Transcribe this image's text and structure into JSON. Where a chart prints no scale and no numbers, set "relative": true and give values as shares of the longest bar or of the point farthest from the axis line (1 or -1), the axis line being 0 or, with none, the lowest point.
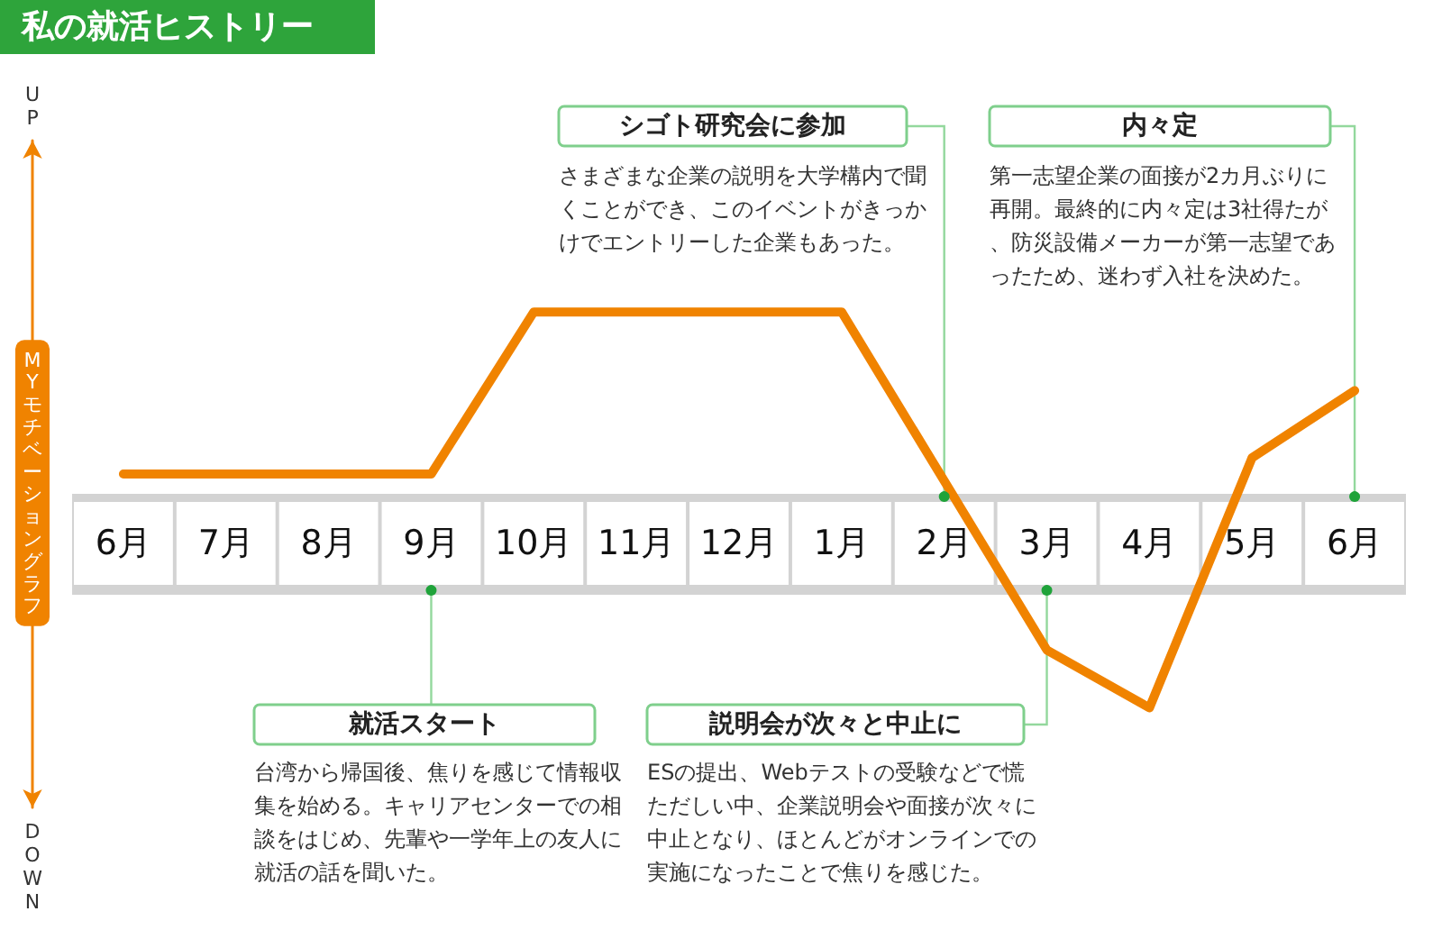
{
  "chart_data": {
    "type": "line",
    "title": "私の就活ヒストリー",
    "ylabel": "MYモチベーショングラフ",
    "categories": [
      "6月",
      "7月",
      "8月",
      "9月",
      "10月",
      "11月",
      "12月",
      "1月",
      "2月",
      "3月",
      "4月",
      "5月",
      "6月"
    ],
    "relative": true,
    "marker": "none",
    "series": [
      {
        "color": "#f08300",
        "values": [
          0.3,
          0.3,
          0.3,
          0.3,
          1,
          1,
          1,
          1,
          0.27,
          -0.46,
          -0.71,
          0.37,
          0.66
        ]
      }
    ],
    "annotations": [
      "UP",
      "シゴト研究会に参加",
      "さまざまな企業の説明を大学構内で聞くことができ、このイベントがきっかけでエントリーした企業もあった。",
      "内々定",
      "第一志望企業の面接が2カ月ぶりに再開。最終的に内々定は3社得たが、防災設備メーカーが第一志望であったため、迷わず入社を決めた。",
      "就活スタート",
      "台湾から帰国後、焦りを感じて情報収集を始める。キャリアセンターでの相談をはじめ、先輩や一学年上の友人に就活の話を聞いた。",
      "説明会が次々と中止に",
      "ESの提出、Webテストの受験などで慌ただしい中、企業説明会や面接が次々に中止となり、ほとんどがオンラインでの実施になったことで焦りを感じた。",
      "DOWN"
    ]
  }
}
